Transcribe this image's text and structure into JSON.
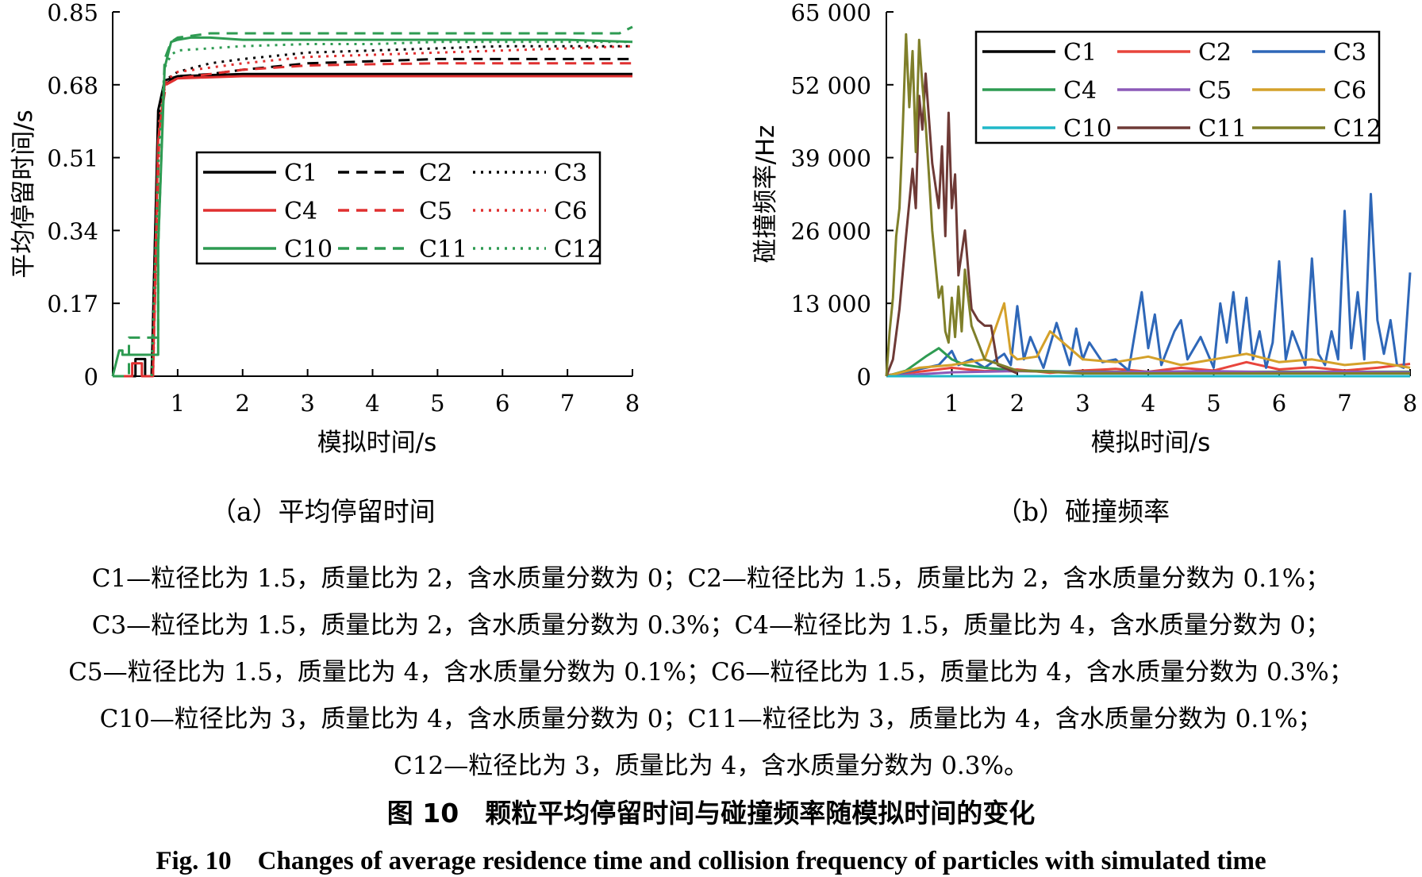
{
  "chart_data": [
    {
      "type": "line",
      "subtitle": "（a）平均停留时间",
      "xlabel": "模拟时间/s",
      "ylabel": "平均停留时间/s",
      "xlim": [
        0,
        8
      ],
      "ylim": [
        0,
        0.85
      ],
      "xticks": [
        "1",
        "2",
        "3",
        "4",
        "5",
        "6",
        "7",
        "8"
      ],
      "yticks": [
        "0",
        "0.17",
        "0.34",
        "0.51",
        "0.68",
        "0.85"
      ],
      "legend": {
        "placement": "center",
        "columns": 3,
        "box": true
      },
      "series": [
        {
          "name": "C1",
          "color": "#000000",
          "dash": "solid",
          "x": [
            0,
            0.35,
            0.35,
            0.5,
            0.5,
            0.6,
            0.7,
            0.8,
            1,
            2,
            3,
            4,
            5,
            6,
            7,
            8
          ],
          "y": [
            0,
            0,
            0.04,
            0.04,
            0,
            0,
            0.62,
            0.69,
            0.7,
            0.705,
            0.705,
            0.705,
            0.705,
            0.705,
            0.705,
            0.705
          ]
        },
        {
          "name": "C2",
          "color": "#000000",
          "dash": "dash",
          "x": [
            0.6,
            0.7,
            0.8,
            1,
            1.5,
            2,
            3,
            4,
            5,
            6,
            7,
            8
          ],
          "y": [
            0,
            0.6,
            0.68,
            0.7,
            0.705,
            0.715,
            0.73,
            0.735,
            0.74,
            0.74,
            0.74,
            0.74
          ]
        },
        {
          "name": "C3",
          "color": "#000000",
          "dash": "dot",
          "x": [
            0.6,
            0.7,
            0.8,
            1,
            1.5,
            2,
            3,
            4,
            5,
            6,
            7,
            8
          ],
          "y": [
            0,
            0.6,
            0.69,
            0.71,
            0.73,
            0.74,
            0.755,
            0.76,
            0.765,
            0.77,
            0.77,
            0.77
          ]
        },
        {
          "name": "C4",
          "color": "#e03030",
          "dash": "solid",
          "x": [
            0,
            0.3,
            0.3,
            0.45,
            0.45,
            0.62,
            0.7,
            0.8,
            1,
            2,
            3,
            4,
            5,
            6,
            7,
            8
          ],
          "y": [
            0,
            0,
            0.03,
            0.03,
            0,
            0,
            0.55,
            0.68,
            0.695,
            0.7,
            0.7,
            0.7,
            0.7,
            0.7,
            0.7,
            0.7
          ]
        },
        {
          "name": "C5",
          "color": "#e03030",
          "dash": "dash",
          "x": [
            0.62,
            0.72,
            0.82,
            1,
            1.5,
            2,
            3,
            4,
            5,
            6,
            7,
            8
          ],
          "y": [
            0,
            0.58,
            0.68,
            0.695,
            0.705,
            0.715,
            0.725,
            0.728,
            0.73,
            0.73,
            0.73,
            0.73
          ]
        },
        {
          "name": "C6",
          "color": "#e03030",
          "dash": "dot",
          "x": [
            0.62,
            0.72,
            0.82,
            1,
            1.5,
            2,
            3,
            4,
            5,
            6,
            7,
            8
          ],
          "y": [
            0,
            0.6,
            0.69,
            0.71,
            0.72,
            0.73,
            0.745,
            0.75,
            0.755,
            0.76,
            0.765,
            0.77
          ]
        },
        {
          "name": "C10",
          "color": "#2e9b52",
          "dash": "solid",
          "x": [
            0,
            0.1,
            0.15,
            0.15,
            0.3,
            0.3,
            0.7,
            0.7,
            0.8,
            0.9,
            1,
            1.2,
            1.5,
            2,
            3,
            4,
            5,
            6,
            7,
            8
          ],
          "y": [
            0,
            0.06,
            0.06,
            0.05,
            0.05,
            0.05,
            0.05,
            0.3,
            0.72,
            0.78,
            0.785,
            0.79,
            0.79,
            0.785,
            0.785,
            0.785,
            0.785,
            0.785,
            0.785,
            0.78
          ]
        },
        {
          "name": "C11",
          "color": "#2e9b52",
          "dash": "dash",
          "x": [
            0,
            0.25,
            0.25,
            0.7,
            0.7,
            0.8,
            0.9,
            1,
            1.5,
            2,
            3,
            4,
            5,
            6,
            7,
            7.8,
            8
          ],
          "y": [
            0,
            0,
            0.09,
            0.09,
            0.3,
            0.74,
            0.78,
            0.79,
            0.8,
            0.8,
            0.8,
            0.8,
            0.8,
            0.8,
            0.8,
            0.8,
            0.815
          ]
        },
        {
          "name": "C12",
          "color": "#2e9b52",
          "dash": "dot",
          "x": [
            0.6,
            0.7,
            0.8,
            0.9,
            1,
            1.5,
            2,
            3,
            4,
            5,
            6,
            7,
            8
          ],
          "y": [
            0,
            0.5,
            0.72,
            0.75,
            0.76,
            0.765,
            0.77,
            0.775,
            0.775,
            0.78,
            0.78,
            0.78,
            0.78
          ]
        }
      ]
    },
    {
      "type": "line",
      "subtitle": "（b）碰撞频率",
      "xlabel": "模拟时间/s",
      "ylabel": "碰撞频率/Hz",
      "xlim": [
        0,
        8
      ],
      "ylim": [
        0,
        65000
      ],
      "xticks": [
        "1",
        "2",
        "3",
        "4",
        "5",
        "6",
        "7",
        "8"
      ],
      "yticks": [
        "0",
        "13 000",
        "26 000",
        "39 000",
        "52 000",
        "65 000"
      ],
      "legend": {
        "placement": "top-right",
        "columns": 3,
        "box": true
      },
      "series": [
        {
          "name": "C1",
          "color": "#000000",
          "x": [
            0,
            8
          ],
          "y": [
            0,
            0
          ]
        },
        {
          "name": "C2",
          "color": "#e8453c",
          "x": [
            0,
            0.5,
            1,
            1.5,
            2,
            2.5,
            3,
            3.5,
            4,
            4.5,
            5,
            5.5,
            6,
            6.5,
            7,
            7.5,
            8
          ],
          "y": [
            200,
            800,
            1500,
            900,
            1200,
            600,
            1000,
            1300,
            800,
            1500,
            1000,
            2500,
            1200,
            1600,
            1000,
            1500,
            2200
          ]
        },
        {
          "name": "C3",
          "color": "#2e67b8",
          "x": [
            0,
            0.8,
            1,
            1.1,
            1.3,
            1.5,
            1.8,
            1.9,
            2,
            2.1,
            2.2,
            2.4,
            2.6,
            2.8,
            2.9,
            3,
            3.1,
            3.3,
            3.5,
            3.7,
            3.9,
            4,
            4.1,
            4.2,
            4.4,
            4.5,
            4.6,
            4.8,
            5,
            5.1,
            5.2,
            5.3,
            5.4,
            5.5,
            5.6,
            5.7,
            5.8,
            5.9,
            6,
            6.1,
            6.2,
            6.4,
            6.5,
            6.6,
            6.7,
            6.8,
            6.9,
            7,
            7.1,
            7.2,
            7.3,
            7.4,
            7.5,
            7.6,
            7.7,
            7.8,
            7.9,
            8
          ],
          "y": [
            0,
            2000,
            4500,
            2000,
            3000,
            1500,
            4000,
            2000,
            12500,
            3000,
            7000,
            1500,
            9500,
            2000,
            8500,
            3000,
            6000,
            2500,
            3000,
            1000,
            15000,
            5000,
            11000,
            2000,
            8000,
            10000,
            3000,
            7000,
            1500,
            13000,
            6000,
            15000,
            4000,
            14000,
            3000,
            8000,
            1500,
            6000,
            20500,
            3000,
            8000,
            2000,
            21000,
            4000,
            2000,
            8000,
            3000,
            29500,
            5000,
            15000,
            3000,
            32500,
            10000,
            4000,
            10000,
            2000,
            1500,
            18500
          ]
        },
        {
          "name": "C4",
          "color": "#2e9b52",
          "x": [
            0,
            0.3,
            0.6,
            0.8,
            1,
            1.2,
            1.5,
            2,
            3,
            4,
            5,
            6,
            7,
            8
          ],
          "y": [
            0,
            1000,
            3500,
            5000,
            3000,
            2000,
            1500,
            1000,
            800,
            800,
            800,
            800,
            800,
            800
          ]
        },
        {
          "name": "C5",
          "color": "#8c5ab8",
          "x": [
            0,
            1,
            2,
            3,
            4,
            5,
            6,
            7,
            8
          ],
          "y": [
            0,
            700,
            900,
            700,
            800,
            900,
            700,
            800,
            700
          ]
        },
        {
          "name": "C6",
          "color": "#d4a12a",
          "x": [
            0,
            0.5,
            1,
            1.5,
            1.8,
            1.9,
            2,
            2.3,
            2.5,
            3,
            3.5,
            4,
            4.5,
            5,
            5.5,
            6,
            6.5,
            7,
            7.5,
            8
          ],
          "y": [
            0,
            1500,
            2000,
            3000,
            13000,
            4000,
            3000,
            3500,
            8000,
            3000,
            2500,
            3500,
            2000,
            3000,
            4000,
            2500,
            3000,
            2000,
            2500,
            1500
          ]
        },
        {
          "name": "C10",
          "color": "#20b8c8",
          "x": [
            0,
            8
          ],
          "y": [
            0,
            0
          ]
        },
        {
          "name": "C11",
          "color": "#6e3a36",
          "x": [
            0,
            0.1,
            0.2,
            0.3,
            0.4,
            0.45,
            0.5,
            0.55,
            0.6,
            0.7,
            0.8,
            0.85,
            0.9,
            0.95,
            1,
            1.05,
            1.1,
            1.2,
            1.3,
            1.4,
            1.5,
            1.6,
            1.7,
            1.8,
            2
          ],
          "y": [
            0,
            3000,
            12000,
            25000,
            37000,
            30000,
            50000,
            44000,
            54000,
            38000,
            30000,
            41000,
            25000,
            47000,
            30000,
            36000,
            18000,
            26000,
            12000,
            10000,
            9000,
            9000,
            2000,
            1500,
            500
          ]
        },
        {
          "name": "C12",
          "color": "#7f7f2a",
          "x": [
            0,
            0.05,
            0.1,
            0.15,
            0.2,
            0.25,
            0.3,
            0.35,
            0.4,
            0.45,
            0.5,
            0.55,
            0.6,
            0.65,
            0.7,
            0.75,
            0.8,
            0.85,
            0.9,
            0.95,
            1,
            1.05,
            1.1,
            1.15,
            1.2,
            1.3,
            1.5,
            2,
            3,
            4,
            5,
            6,
            7,
            8
          ],
          "y": [
            0,
            8000,
            14000,
            25000,
            30000,
            44000,
            61000,
            48000,
            58000,
            40000,
            60000,
            52000,
            45000,
            36000,
            26000,
            20000,
            14000,
            16000,
            8000,
            6000,
            14000,
            7000,
            16000,
            8000,
            19000,
            9000,
            3000,
            1000,
            500,
            500,
            500,
            500,
            500,
            500
          ]
        }
      ]
    }
  ],
  "captions": {
    "lines": [
      "C1—粒径比为 1.5，质量比为 2，含水质量分数为 0；C2—粒径比为 1.5，质量比为 2，含水质量分数为 0.1%；",
      "C3—粒径比为 1.5，质量比为 2，含水质量分数为 0.3%；C4—粒径比为 1.5，质量比为 4，含水质量分数为 0；",
      "C5—粒径比为 1.5，质量比为 4，含水质量分数为 0.1%；C6—粒径比为 1.5，质量比为 4，含水质量分数为 0.3%；",
      "C10—粒径比为 3，质量比为 4，含水质量分数为 0；C11—粒径比为 3，质量比为 4，含水质量分数为 0.1%；",
      "C12—粒径比为 3，质量比为 4，含水质量分数为 0.3%。"
    ],
    "fig_cn": "图 10　颗粒平均停留时间与碰撞频率随模拟时间的变化",
    "fig_en": "Fig. 10　Changes of average residence time and collision frequency of particles with simulated time"
  }
}
